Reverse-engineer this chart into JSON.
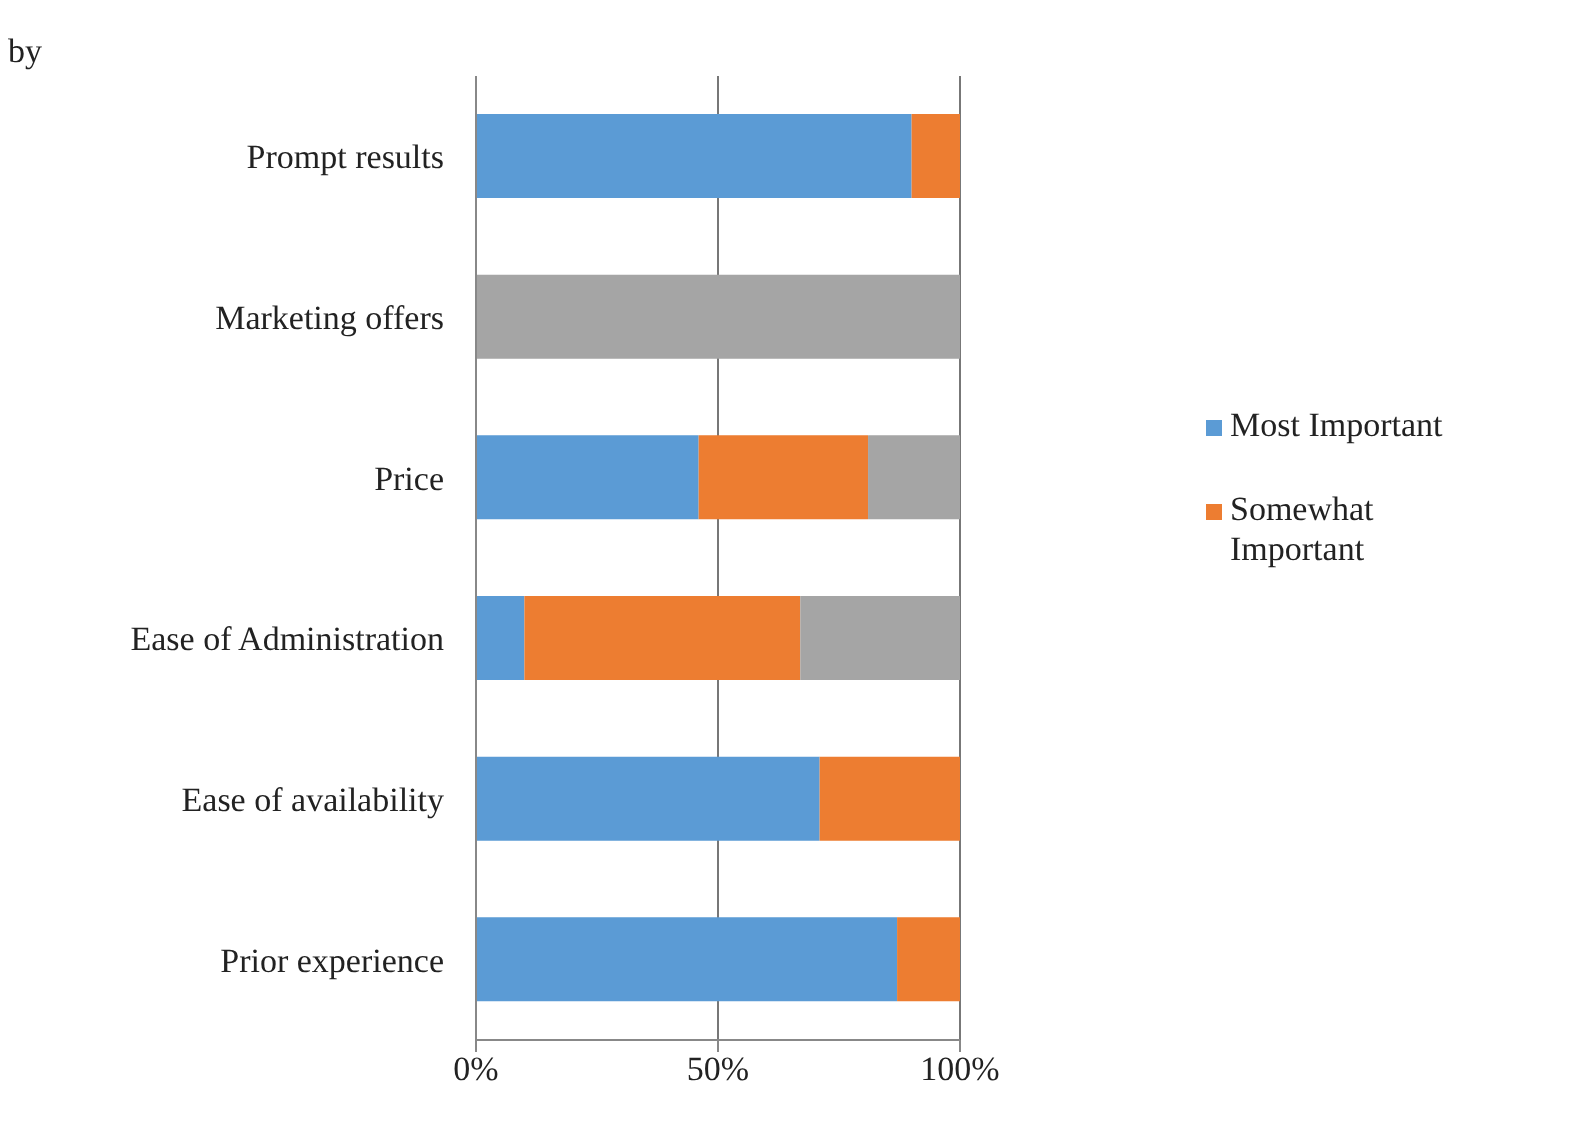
{
  "chart_data": {
    "type": "bar",
    "orientation": "horizontal",
    "stacked": true,
    "annotations": [
      "by"
    ],
    "categories": [
      "Prompt results",
      "Marketing offers",
      "Price",
      "Ease of Administration",
      "Ease of availability",
      "Prior experience"
    ],
    "series": [
      {
        "name": "Most Important",
        "color": "#5b9bd5",
        "values": [
          90,
          0,
          46,
          10,
          71,
          87
        ]
      },
      {
        "name": "Somewhat Important",
        "color": "#ed7d31",
        "values": [
          10,
          0,
          35,
          57,
          29,
          13
        ]
      },
      {
        "color": "#a5a5a5",
        "values": [
          0,
          100,
          19,
          33,
          0,
          0
        ]
      }
    ],
    "xlim": [
      0,
      100
    ],
    "xticks": [
      {
        "value": 0,
        "label": "0%"
      },
      {
        "value": 50,
        "label": "50%"
      },
      {
        "value": 100,
        "label": "100%"
      }
    ],
    "grid": "x",
    "legend": "right"
  }
}
